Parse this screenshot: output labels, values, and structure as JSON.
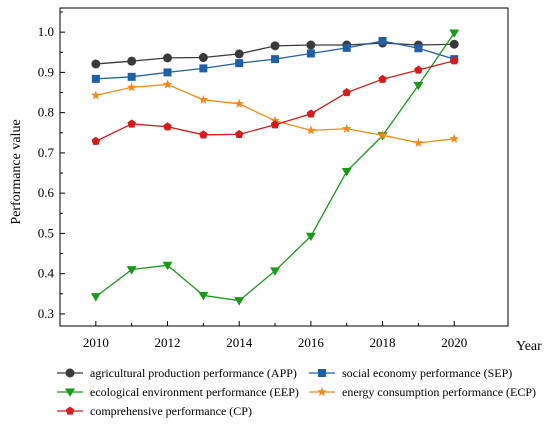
{
  "chart_data": {
    "type": "line",
    "xlabel": "Year",
    "ylabel": "Performance  value",
    "x": [
      2010,
      2011,
      2012,
      2013,
      2014,
      2015,
      2016,
      2017,
      2018,
      2019,
      2020
    ],
    "x_ticks": [
      "2010",
      "2012",
      "2014",
      "2016",
      "2018",
      "2020"
    ],
    "y_ticks": [
      "0.3",
      "0.4",
      "0.5",
      "0.6",
      "0.7",
      "0.8",
      "0.9",
      "1.0"
    ],
    "xlim": [
      2009,
      2021.5
    ],
    "ylim": [
      0.27,
      1.06
    ],
    "grid": false,
    "legend_position": "bottom",
    "series": [
      {
        "name": "agricultural production performance (APP)",
        "color": "#3a3a3a",
        "marker": "circle",
        "values": [
          0.921,
          0.928,
          0.936,
          0.937,
          0.946,
          0.966,
          0.968,
          0.968,
          0.973,
          0.968,
          0.97
        ]
      },
      {
        "name": "social economy performance (SEP)",
        "color": "#1f5fa8",
        "marker": "square",
        "values": [
          0.884,
          0.889,
          0.9,
          0.91,
          0.923,
          0.933,
          0.947,
          0.961,
          0.978,
          0.96,
          0.933
        ]
      },
      {
        "name": "ecological environment performance (EEP)",
        "color": "#1a9a1a",
        "marker": "triangle-down",
        "values": [
          0.343,
          0.41,
          0.421,
          0.346,
          0.333,
          0.407,
          0.493,
          0.654,
          0.743,
          0.868,
          0.998
        ]
      },
      {
        "name": "energy consumption performance (ECP)",
        "color": "#f08a1c",
        "marker": "star",
        "values": [
          0.843,
          0.863,
          0.87,
          0.832,
          0.822,
          0.78,
          0.756,
          0.76,
          0.744,
          0.725,
          0.735
        ]
      },
      {
        "name": "comprehensive performance (CP)",
        "color": "#d41c1c",
        "marker": "pentagon",
        "values": [
          0.729,
          0.772,
          0.765,
          0.745,
          0.746,
          0.77,
          0.797,
          0.85,
          0.883,
          0.906,
          0.929
        ]
      }
    ]
  }
}
